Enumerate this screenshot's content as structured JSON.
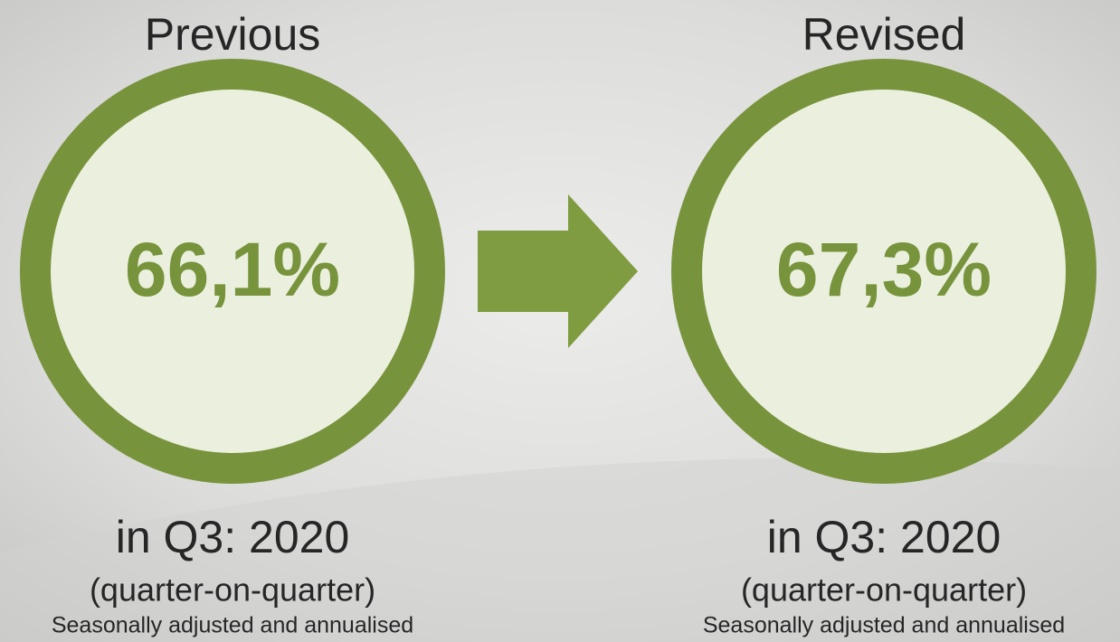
{
  "panels": [
    {
      "heading": "Previous",
      "value": "66,1%",
      "period": "in Q3: 2020",
      "basis": "(quarter-on-quarter)",
      "note": "Seasonally adjusted and annualised"
    },
    {
      "heading": "Revised",
      "value": "67,3%",
      "period": "in Q3: 2020",
      "basis": "(quarter-on-quarter)",
      "note": "Seasonally adjusted and annualised"
    }
  ]
}
